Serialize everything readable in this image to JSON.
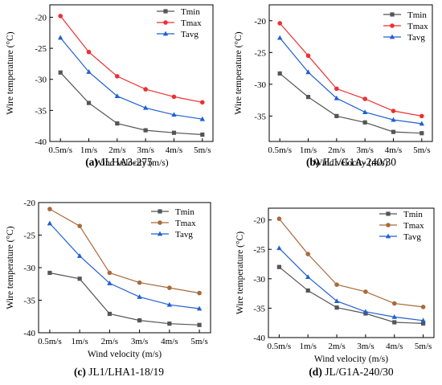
{
  "figure": {
    "captions": [
      {
        "tag": "(a)",
        "text": " JLHA3-275"
      },
      {
        "tag": "(b)",
        "text": " JL1/G1A-240/30"
      },
      {
        "tag": "(c)",
        "text": " JL1/LHA1-18/19"
      },
      {
        "tag": "(d)",
        "text": " JL/G1A-240/30"
      }
    ]
  },
  "chart_data": [
    {
      "type": "line",
      "categories": [
        "0.5m/s",
        "1m/s",
        "2m/s",
        "3m/s",
        "4m/s",
        "5m/s"
      ],
      "xlabel": "Wind velocity (m/s)",
      "ylabel": "Wire temperature (°C)",
      "ylim": [
        -40,
        -18
      ],
      "yticks": [
        -40,
        -35,
        -30,
        -25,
        -20
      ],
      "grid": false,
      "legend_position": "top-right",
      "series": [
        {
          "name": "Tmin",
          "color": "#555555",
          "marker": "square",
          "values": [
            -28.9,
            -33.8,
            -37.1,
            -38.2,
            -38.6,
            -38.9
          ]
        },
        {
          "name": "Tmax",
          "color": "#ee3030",
          "marker": "circle",
          "values": [
            -19.8,
            -25.6,
            -29.5,
            -31.6,
            -32.8,
            -33.7
          ]
        },
        {
          "name": "Tavg",
          "color": "#2060d0",
          "marker": "triangle",
          "values": [
            -23.3,
            -28.8,
            -32.7,
            -34.6,
            -35.7,
            -36.4
          ]
        }
      ]
    },
    {
      "type": "line",
      "categories": [
        "0.5m/s",
        "1m/s",
        "2m/s",
        "3m/s",
        "4m/s",
        "5m/s"
      ],
      "xlabel": "Wind velocity (m/s)",
      "ylabel": "Wire temperature (°C)",
      "ylim": [
        -39,
        -17.5
      ],
      "yticks": [
        -35,
        -30,
        -25,
        -20
      ],
      "grid": false,
      "legend_position": "top-right",
      "series": [
        {
          "name": "Tmin",
          "color": "#555555",
          "marker": "square",
          "values": [
            -28.3,
            -32.0,
            -35.0,
            -36.0,
            -37.5,
            -37.7
          ]
        },
        {
          "name": "Tmax",
          "color": "#ee3030",
          "marker": "circle",
          "values": [
            -20.4,
            -25.5,
            -30.7,
            -32.3,
            -34.2,
            -35.0
          ]
        },
        {
          "name": "Tavg",
          "color": "#2060d0",
          "marker": "triangle",
          "values": [
            -22.7,
            -28.1,
            -32.2,
            -34.4,
            -35.6,
            -36.2
          ]
        }
      ]
    },
    {
      "type": "line",
      "categories": [
        "0.5m/s",
        "1m/s",
        "2m/s",
        "3m/s",
        "4m/s",
        "5m/s"
      ],
      "xlabel": "Wind velocity (m/s)",
      "ylabel": "Wire temperature (°C)",
      "ylim": [
        -40,
        -20
      ],
      "yticks": [
        -40,
        -35,
        -30,
        -25,
        -20
      ],
      "grid": false,
      "legend_position": "top-right",
      "series": [
        {
          "name": "Tmin",
          "color": "#555555",
          "marker": "square",
          "values": [
            -30.8,
            -31.7,
            -37.1,
            -38.1,
            -38.6,
            -38.8
          ]
        },
        {
          "name": "Tmax",
          "color": "#a86a3c",
          "marker": "circle",
          "values": [
            -21.0,
            -23.6,
            -30.8,
            -32.3,
            -33.1,
            -33.9
          ]
        },
        {
          "name": "Tavg",
          "color": "#2060d0",
          "marker": "triangle",
          "values": [
            -23.2,
            -28.2,
            -32.4,
            -34.5,
            -35.7,
            -36.3
          ]
        }
      ]
    },
    {
      "type": "line",
      "categories": [
        "0.5m/s",
        "1m/s",
        "2m/s",
        "3m/s",
        "4m/s",
        "5m/s"
      ],
      "xlabel": "Wind velocity (m/s)",
      "ylabel": "Wire temperature (°C)",
      "ylim": [
        -40,
        -18
      ],
      "yticks": [
        -40,
        -35,
        -30,
        -25,
        -20
      ],
      "grid": false,
      "legend_position": "top-right",
      "series": [
        {
          "name": "Tmin",
          "color": "#555555",
          "marker": "square",
          "values": [
            -28.0,
            -32.0,
            -34.9,
            -35.9,
            -37.4,
            -37.6
          ]
        },
        {
          "name": "Tmax",
          "color": "#a86a3c",
          "marker": "circle",
          "values": [
            -19.8,
            -25.8,
            -31.0,
            -32.2,
            -34.2,
            -34.8
          ]
        },
        {
          "name": "Tavg",
          "color": "#2060d0",
          "marker": "triangle",
          "values": [
            -24.8,
            -29.7,
            -33.8,
            -35.6,
            -36.5,
            -37.1
          ]
        }
      ]
    }
  ]
}
